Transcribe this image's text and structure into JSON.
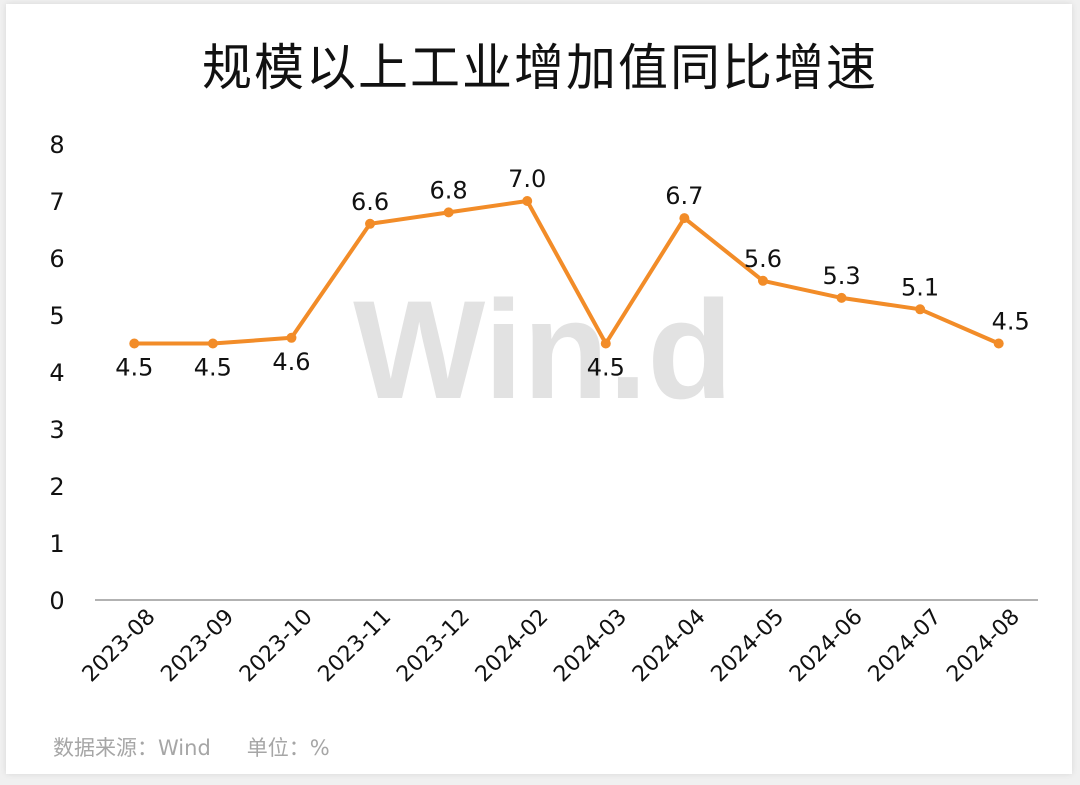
{
  "title": "规模以上工业增加值同比增速",
  "watermark": "Win.d",
  "footer": {
    "source": "数据来源：Wind",
    "unit": "单位：%"
  },
  "colors": {
    "line": "#F28C28",
    "axis": "#999999",
    "watermark": "#e2e2e2"
  },
  "chart_data": {
    "type": "line",
    "title": "规模以上工业增加值同比增速",
    "xlabel": "",
    "ylabel": "",
    "ylim": [
      0,
      8
    ],
    "yticks": [
      0,
      1,
      2,
      3,
      4,
      5,
      6,
      7,
      8
    ],
    "grid": false,
    "categories": [
      "2023-08",
      "2023-09",
      "2023-10",
      "2023-11",
      "2023-12",
      "2024-02",
      "2024-03",
      "2024-04",
      "2024-05",
      "2024-06",
      "2024-07",
      "2024-08"
    ],
    "series": [
      {
        "values": [
          4.5,
          4.5,
          4.6,
          6.6,
          6.8,
          7.0,
          4.5,
          6.7,
          5.6,
          5.3,
          5.1,
          4.5
        ]
      }
    ],
    "data_labels": [
      "4.5",
      "4.5",
      "4.6",
      "6.6",
      "6.8",
      "7.0",
      "4.5",
      "6.7",
      "5.6",
      "5.3",
      "5.1",
      "4.5"
    ]
  }
}
